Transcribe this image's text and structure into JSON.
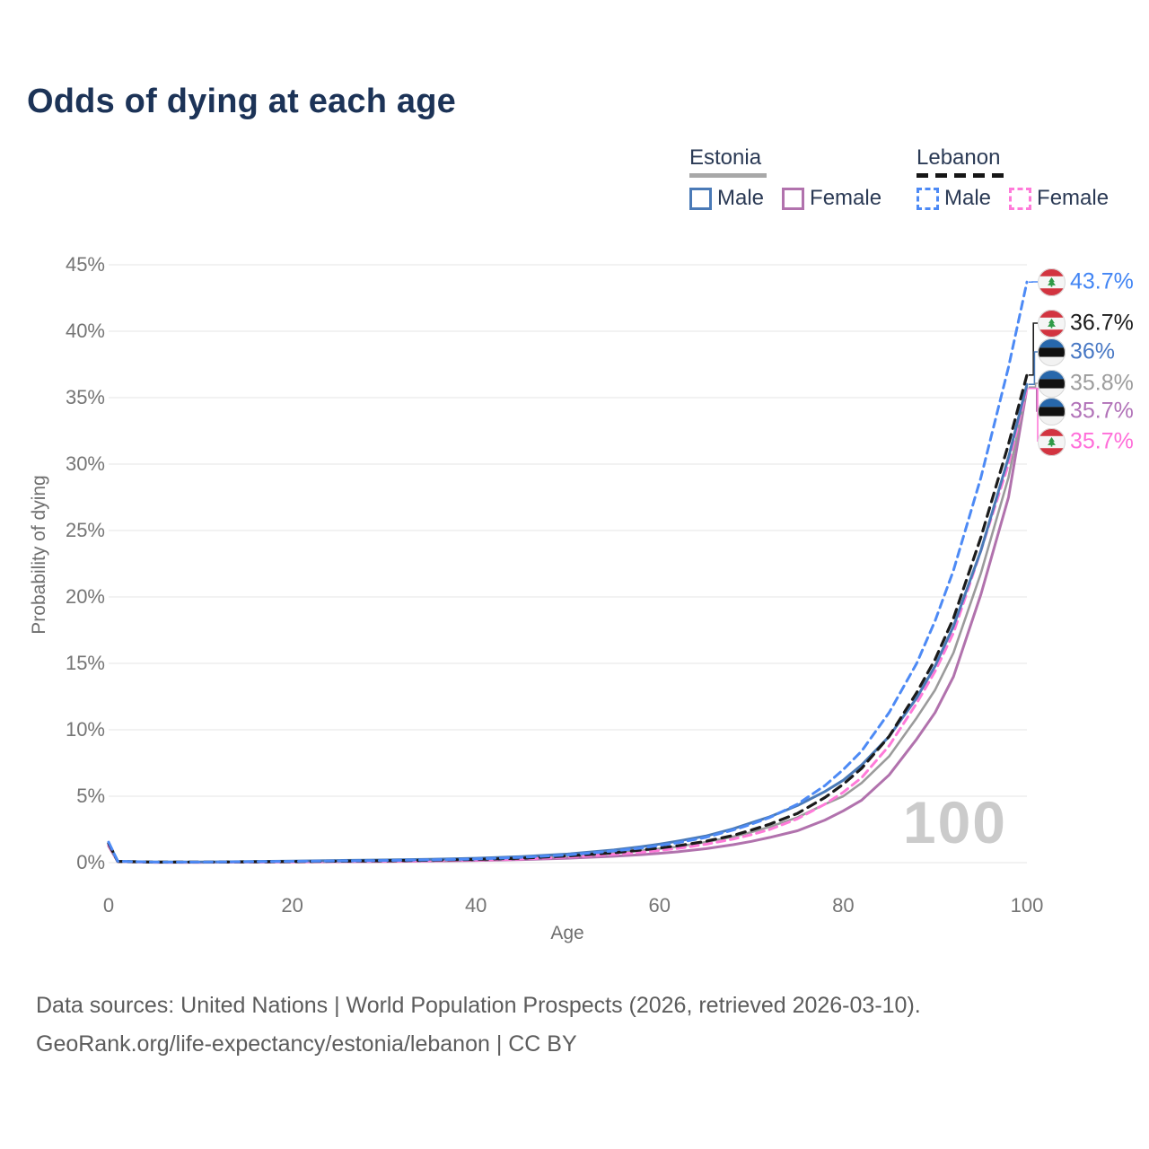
{
  "title": "Odds of dying at each age",
  "legend": {
    "groups": [
      {
        "id": "estonia",
        "label": "Estonia",
        "line_style": "solid",
        "line_color": "#a8a8a8",
        "items": [
          {
            "label": "Male",
            "color": "#4a7ab7",
            "box_style": "solid"
          },
          {
            "label": "Female",
            "color": "#b172ad",
            "box_style": "solid"
          }
        ]
      },
      {
        "id": "lebanon",
        "label": "Lebanon",
        "line_style": "dashed",
        "line_color": "#161616",
        "items": [
          {
            "label": "Male",
            "color": "#4d8af5",
            "box_style": "dashed"
          },
          {
            "label": "Female",
            "color": "#ff7ad9",
            "box_style": "dashed"
          }
        ]
      }
    ]
  },
  "chart_data": {
    "type": "line",
    "title": "Odds of dying at each age",
    "xlabel": "Age",
    "ylabel": "Probability of dying",
    "xlim": [
      0,
      100
    ],
    "ylim": [
      0,
      45
    ],
    "grid": "horizontal",
    "legend_position": "top-right",
    "watermark": "100",
    "xticks": [
      {
        "value": 0,
        "label": "0"
      },
      {
        "value": 20,
        "label": "20"
      },
      {
        "value": 40,
        "label": "40"
      },
      {
        "value": 60,
        "label": "60"
      },
      {
        "value": 80,
        "label": "80"
      },
      {
        "value": 100,
        "label": "100"
      }
    ],
    "yticks": [
      {
        "value": 0,
        "label": "0%"
      },
      {
        "value": 5,
        "label": "5%"
      },
      {
        "value": 10,
        "label": "10%"
      },
      {
        "value": 15,
        "label": "15%"
      },
      {
        "value": 20,
        "label": "20%"
      },
      {
        "value": 25,
        "label": "25%"
      },
      {
        "value": 30,
        "label": "30%"
      },
      {
        "value": 35,
        "label": "35%"
      },
      {
        "value": 40,
        "label": "40%"
      },
      {
        "value": 45,
        "label": "45%"
      }
    ],
    "x": [
      0,
      1,
      5,
      10,
      15,
      20,
      25,
      30,
      35,
      40,
      45,
      50,
      55,
      58,
      60,
      62,
      65,
      68,
      70,
      72,
      75,
      78,
      80,
      82,
      85,
      88,
      90,
      92,
      95,
      98,
      100
    ],
    "series": [
      {
        "id": "estonia_female",
        "country": "Estonia",
        "sex": "Female",
        "color": "#b172ad",
        "dash": null,
        "width": 3,
        "values": [
          1.25,
          0.08,
          0.03,
          0.03,
          0.04,
          0.05,
          0.07,
          0.09,
          0.12,
          0.16,
          0.23,
          0.33,
          0.48,
          0.6,
          0.7,
          0.82,
          1.05,
          1.35,
          1.6,
          1.9,
          2.4,
          3.2,
          3.9,
          4.7,
          6.6,
          9.3,
          11.3,
          14.0,
          20.2,
          27.5,
          35.7
        ]
      },
      {
        "id": "estonia_total",
        "country": "Estonia",
        "sex": "Both",
        "color": "#9b9b9b",
        "dash": null,
        "width": 2.6,
        "values": [
          1.35,
          0.09,
          0.04,
          0.04,
          0.06,
          0.09,
          0.12,
          0.15,
          0.19,
          0.25,
          0.35,
          0.5,
          0.72,
          0.9,
          1.05,
          1.2,
          1.55,
          1.95,
          2.3,
          2.7,
          3.4,
          4.4,
          5.0,
          6.0,
          8.0,
          10.9,
          13.0,
          15.8,
          21.8,
          29.0,
          35.8
        ]
      },
      {
        "id": "lebanon_female",
        "country": "Lebanon",
        "sex": "Female",
        "color": "#ff7ad9",
        "dash": "9 6",
        "width": 3,
        "values": [
          1.35,
          0.08,
          0.03,
          0.03,
          0.05,
          0.06,
          0.08,
          0.11,
          0.14,
          0.19,
          0.28,
          0.41,
          0.62,
          0.78,
          0.92,
          1.07,
          1.38,
          1.77,
          2.1,
          2.5,
          3.3,
          4.4,
          5.3,
          6.4,
          8.8,
          12.0,
          14.4,
          17.3,
          23.5,
          30.0,
          35.7
        ]
      },
      {
        "id": "estonia_male",
        "country": "Estonia",
        "sex": "Male",
        "color": "#4a7ab7",
        "dash": null,
        "width": 3,
        "values": [
          1.5,
          0.1,
          0.05,
          0.05,
          0.08,
          0.12,
          0.16,
          0.2,
          0.25,
          0.33,
          0.45,
          0.65,
          0.95,
          1.2,
          1.4,
          1.62,
          2.0,
          2.55,
          3.0,
          3.45,
          4.3,
          5.35,
          6.2,
          7.35,
          9.5,
          12.4,
          14.8,
          17.8,
          23.5,
          30.5,
          36.0
        ]
      },
      {
        "id": "lebanon_total",
        "country": "Lebanon",
        "sex": "Both",
        "color": "#1b1b1b",
        "dash": "10 7",
        "width": 3.2,
        "values": [
          1.45,
          0.09,
          0.04,
          0.04,
          0.06,
          0.08,
          0.11,
          0.14,
          0.18,
          0.24,
          0.34,
          0.5,
          0.74,
          0.95,
          1.1,
          1.27,
          1.6,
          2.05,
          2.45,
          2.9,
          3.7,
          4.9,
          5.9,
          7.1,
          9.5,
          12.8,
          15.3,
          18.4,
          24.5,
          31.5,
          36.7
        ]
      },
      {
        "id": "lebanon_male",
        "country": "Lebanon",
        "sex": "Male",
        "color": "#4d8af5",
        "dash": "9 6",
        "width": 3,
        "values": [
          1.55,
          0.1,
          0.04,
          0.04,
          0.07,
          0.1,
          0.13,
          0.16,
          0.21,
          0.28,
          0.4,
          0.58,
          0.88,
          1.1,
          1.3,
          1.5,
          1.9,
          2.45,
          2.9,
          3.4,
          4.4,
          5.8,
          7.0,
          8.4,
          11.3,
          15.0,
          18.2,
          22.0,
          29.0,
          37.3,
          43.7
        ]
      }
    ],
    "end_labels": [
      {
        "series": "lebanon_male",
        "text": "43.7%",
        "flag": "lebanon",
        "color": "#4285f4"
      },
      {
        "series": "lebanon_total",
        "text": "36.7%",
        "flag": "lebanon",
        "color": "#1a1a1a"
      },
      {
        "series": "estonia_male",
        "text": "36%",
        "flag": "estonia",
        "color": "#4878c4"
      },
      {
        "series": "estonia_total",
        "text": "35.8%",
        "flag": "estonia",
        "color": "#9c9c9c"
      },
      {
        "series": "estonia_female",
        "text": "35.7%",
        "flag": "estonia",
        "color": "#b172b8"
      },
      {
        "series": "lebanon_female",
        "text": "35.7%",
        "flag": "lebanon",
        "color": "#ff6ed9"
      }
    ]
  },
  "icons": {
    "estonia_flag_colors": [
      "#2767ab",
      "#111111",
      "#f2f2f2"
    ],
    "lebanon_flag_colors": [
      "#d23440",
      "#f5f5f5",
      "#2f9a47"
    ]
  },
  "footer": {
    "line1": "Data sources: United Nations | World Population Prospects (2026, retrieved 2026-03-10).",
    "line2": "GeoRank.org/life-expectancy/estonia/lebanon | CC BY"
  }
}
